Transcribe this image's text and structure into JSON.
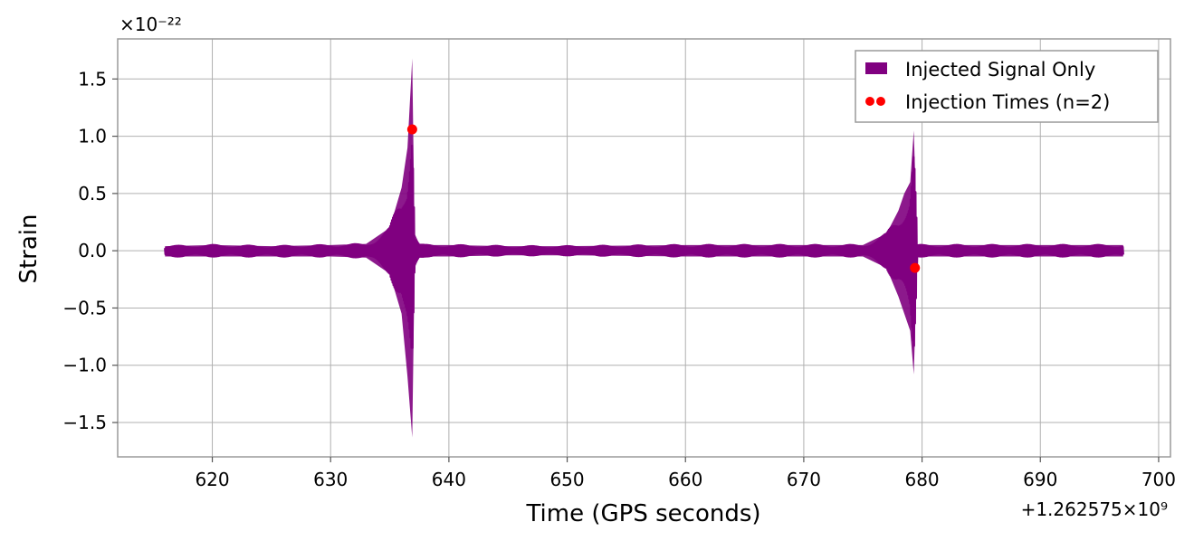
{
  "chart_data": {
    "type": "line",
    "xlabel": "Time (GPS seconds)",
    "ylabel": "Strain",
    "x_offset_text": "+1.262575×10⁹",
    "x_offset_value": 1262575000,
    "y_multiplier_text": "×10⁻²²",
    "y_multiplier_value": 1e-22,
    "xlim": [
      612,
      701
    ],
    "ylim": [
      -1.8,
      1.85
    ],
    "x_ticks": [
      620,
      630,
      640,
      650,
      660,
      670,
      680,
      690,
      700
    ],
    "x_tick_labels": [
      "620",
      "630",
      "640",
      "650",
      "660",
      "670",
      "680",
      "690",
      "700"
    ],
    "y_ticks": [
      -1.5,
      -1.0,
      -0.5,
      0.0,
      0.5,
      1.0,
      1.5
    ],
    "y_tick_labels": [
      "−1.5",
      "−1.0",
      "−0.5",
      "0.0",
      "0.5",
      "1.0",
      "1.5"
    ],
    "grid": true,
    "legend_position": "top-right",
    "series": [
      {
        "name": "Injected Signal Only",
        "kind": "line",
        "color": "#800080",
        "x_range": [
          616,
          697
        ],
        "envelope": {
          "x": [
            616,
            620,
            625,
            630,
            633,
            635,
            636,
            636.5,
            636.9,
            637.1,
            637.5,
            638,
            640,
            645,
            650,
            660,
            670,
            675,
            677,
            678,
            678.5,
            679,
            679.3,
            679.6,
            680,
            685,
            690,
            697
          ],
          "upper": [
            0.04,
            0.05,
            0.04,
            0.05,
            0.06,
            0.2,
            0.55,
            0.9,
            1.68,
            0.15,
            0.06,
            0.05,
            0.05,
            0.04,
            0.04,
            0.05,
            0.05,
            0.05,
            0.15,
            0.35,
            0.5,
            0.6,
            1.05,
            0.05,
            0.05,
            0.05,
            0.05,
            0.05
          ],
          "lower": [
            -0.05,
            -0.05,
            -0.05,
            -0.05,
            -0.06,
            -0.2,
            -0.55,
            -1.1,
            -1.63,
            -0.15,
            -0.06,
            -0.05,
            -0.05,
            -0.04,
            -0.04,
            -0.05,
            -0.05,
            -0.05,
            -0.15,
            -0.4,
            -0.55,
            -0.7,
            -1.08,
            -0.05,
            -0.05,
            -0.05,
            -0.05,
            -0.05
          ]
        }
      },
      {
        "name": "Injection Times (n=2)",
        "kind": "scatter",
        "color": "#ff0000",
        "points": [
          {
            "x": 636.9,
            "y": 1.06
          },
          {
            "x": 679.4,
            "y": -0.15
          }
        ]
      }
    ]
  }
}
